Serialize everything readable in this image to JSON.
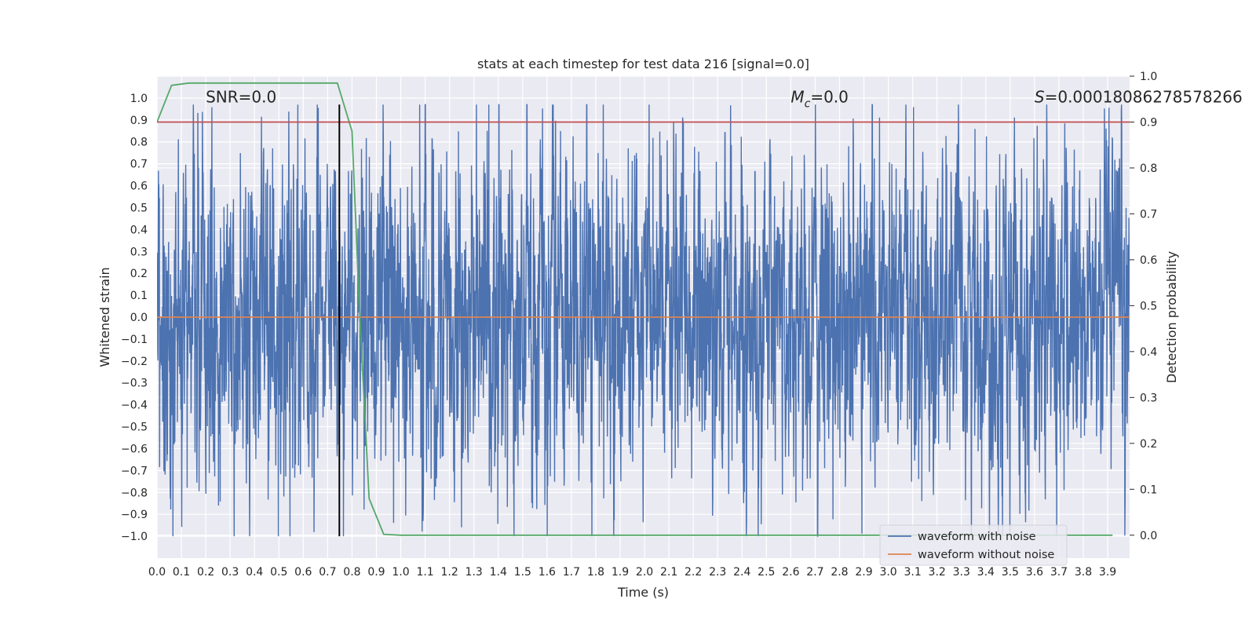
{
  "chart_data": {
    "type": "line",
    "title": "stats at each timestep for test data 216 [signal=0.0]",
    "xlabel": "Time (s)",
    "ylabel": "Whitened strain",
    "y2label": "Detection probability",
    "xlim": [
      0.0,
      3.99
    ],
    "ylim": [
      -1.1,
      1.1
    ],
    "y2lim": [
      -0.05,
      1.0
    ],
    "x_ticks": [
      "0.0",
      "0.1",
      "0.2",
      "0.3",
      "0.4",
      "0.5",
      "0.6",
      "0.7",
      "0.8",
      "0.9",
      "1.0",
      "1.1",
      "1.2",
      "1.3",
      "1.4",
      "1.5",
      "1.6",
      "1.7",
      "1.8",
      "1.9",
      "2.0",
      "2.1",
      "2.2",
      "2.3",
      "2.4",
      "2.5",
      "2.6",
      "2.7",
      "2.8",
      "2.9",
      "3.0",
      "3.1",
      "3.2",
      "3.3",
      "3.4",
      "3.5",
      "3.6",
      "3.7",
      "3.8",
      "3.9"
    ],
    "y_ticks": [
      "1.0",
      "0.9",
      "0.8",
      "0.7",
      "0.6",
      "0.5",
      "0.4",
      "0.3",
      "0.2",
      "0.1",
      "0.0",
      "-0.1",
      "-0.2",
      "-0.3",
      "-0.4",
      "-0.5",
      "-0.6",
      "-0.7",
      "-0.8",
      "-0.9",
      "-1.0"
    ],
    "y2_ticks": [
      "1.0",
      "0.9",
      "0.8",
      "0.7",
      "0.6",
      "0.5",
      "0.4",
      "0.3",
      "0.2",
      "0.1",
      "0.0"
    ],
    "grid": true,
    "legend_position": "bottom-right",
    "annotations": {
      "snr": "SNR=0.0",
      "mc_symbol": "M",
      "mc_sub": "c",
      "mc_value": "=0.0",
      "s_symbol": "S",
      "s_value": "=0.00018086278578266"
    },
    "series": [
      {
        "name": "waveform with noise",
        "axis": "left",
        "color": "#4c72b0",
        "kind": "noise",
        "amplitude_range": [
          -1.0,
          0.97
        ],
        "samples": 4096,
        "seed": 216
      },
      {
        "name": "waveform without noise",
        "axis": "left",
        "color": "#dd8452",
        "x": [
          0.0,
          3.99
        ],
        "y": [
          0.0,
          0.0
        ]
      },
      {
        "name": "detection probability",
        "axis": "right",
        "color": "#55a868",
        "x": [
          0.0,
          0.06,
          0.13,
          0.2,
          0.74,
          0.8,
          0.83,
          0.87,
          0.93,
          1.0,
          3.92
        ],
        "y": [
          0.9,
          0.98,
          0.985,
          0.985,
          0.985,
          0.88,
          0.5,
          0.08,
          0.002,
          0.0,
          0.0
        ]
      },
      {
        "name": "threshold",
        "axis": "right",
        "color": "#c44e52",
        "x": [
          0.0,
          3.99
        ],
        "y": [
          0.9,
          0.9
        ]
      },
      {
        "name": "detection time",
        "axis": "left",
        "color": "#000000",
        "x": [
          0.748,
          0.748
        ],
        "y": [
          -1.0,
          0.97
        ]
      }
    ],
    "legend": [
      "waveform with noise",
      "waveform without noise"
    ]
  },
  "colors": {
    "background": "#eaeaf2",
    "grid": "#ffffff",
    "noise": "#4c72b0",
    "clean": "#dd8452",
    "probability": "#55a868",
    "threshold": "#c44e52",
    "marker": "#000000"
  }
}
